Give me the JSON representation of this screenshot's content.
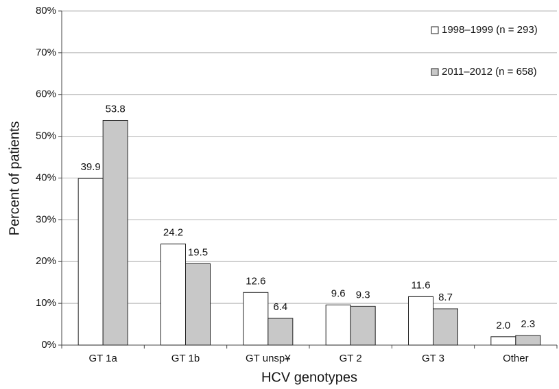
{
  "chart_data": {
    "type": "bar",
    "xlabel": "HCV genotypes",
    "ylabel": "Percent of patients",
    "categories": [
      "GT 1a",
      "GT 1b",
      "GT unsp¥",
      "GT 2",
      "GT 3",
      "Other"
    ],
    "series": [
      {
        "name": "1998–1999 (n = 293)",
        "color": "#ffffff",
        "values": [
          39.9,
          24.2,
          12.6,
          9.6,
          11.6,
          2.0
        ],
        "value_labels": [
          "39.9",
          "24.2",
          "12.6",
          "9.6",
          "11.6",
          "2.0"
        ]
      },
      {
        "name": "2011–2012 (n = 658)",
        "color": "#c8c8c8",
        "values": [
          53.8,
          19.5,
          6.4,
          9.3,
          8.7,
          2.3
        ],
        "value_labels": [
          "53.8",
          "19.5",
          "6.4",
          "9.3",
          "8.7",
          "2.3"
        ]
      }
    ],
    "ylim": [
      0,
      80
    ],
    "yticks": [
      {
        "value": 0,
        "label": "0%"
      },
      {
        "value": 10,
        "label": "10%"
      },
      {
        "value": 20,
        "label": "20%"
      },
      {
        "value": 30,
        "label": "30%"
      },
      {
        "value": 40,
        "label": "40%"
      },
      {
        "value": 50,
        "label": "50%"
      },
      {
        "value": 60,
        "label": "60%"
      },
      {
        "value": 70,
        "label": "70%"
      },
      {
        "value": 80,
        "label": "80%"
      }
    ],
    "grid": true,
    "legend": "upper right"
  }
}
